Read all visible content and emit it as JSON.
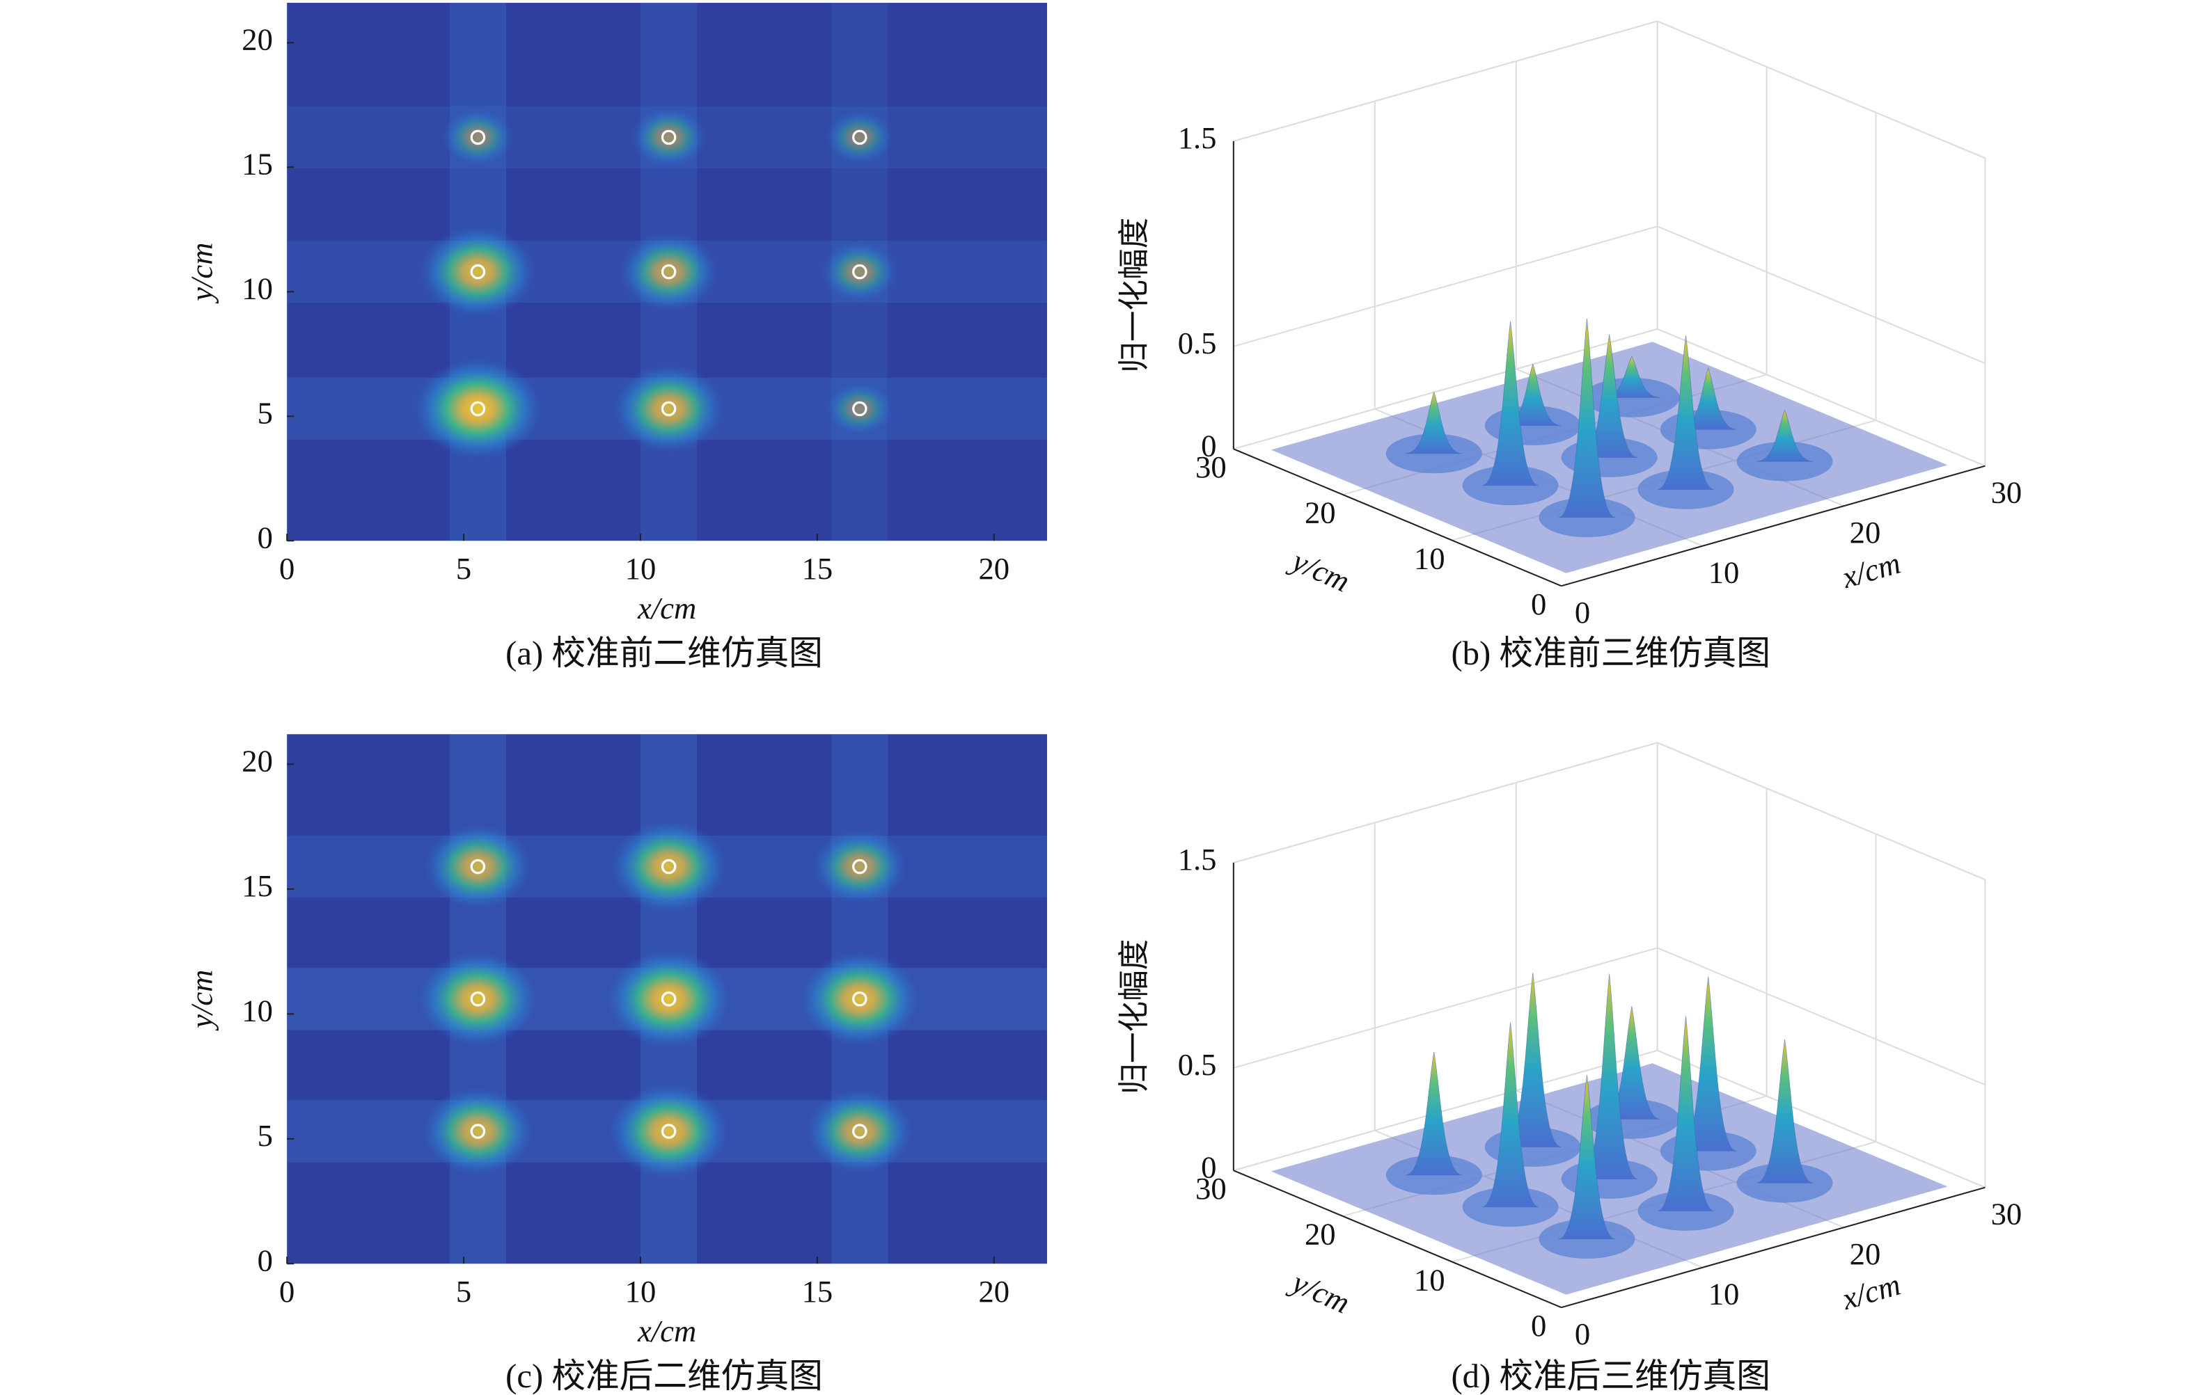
{
  "chart_data": [
    {
      "type": "heatmap",
      "caption": "(a) 校准前二维仿真图",
      "xlabel": "x/cm",
      "ylabel": "y/cm",
      "xlim": [
        0,
        21.5
      ],
      "ylim": [
        0,
        21.6
      ],
      "xticks": [
        0,
        5,
        10,
        15,
        20
      ],
      "yticks": [
        0,
        5,
        10,
        15,
        20
      ],
      "markers": {
        "x": [
          5.4,
          10.8,
          16.2,
          5.4,
          10.8,
          16.2,
          5.4,
          10.8,
          16.2
        ],
        "y": [
          5.3,
          5.3,
          5.3,
          10.8,
          10.8,
          10.8,
          16.2,
          16.2,
          16.2
        ],
        "intensity": [
          0.9,
          0.7,
          0.2,
          0.75,
          0.55,
          0.3,
          0.25,
          0.3,
          0.2
        ]
      }
    },
    {
      "type": "surface3d",
      "caption": "(b) 校准前三维仿真图",
      "xlabel": "x/cm",
      "ylabel": "y/cm",
      "zlabel": "归一化幅度",
      "xlim": [
        0,
        30
      ],
      "ylim": [
        0,
        30
      ],
      "zlim": [
        0,
        1.5
      ],
      "xticks": [
        0,
        10,
        20,
        30
      ],
      "yticks": [
        0,
        10,
        20,
        30
      ],
      "zticks": [
        0,
        0.5,
        1.5
      ],
      "peaks": {
        "x": [
          22,
          15,
          22,
          8,
          15,
          22,
          8,
          15,
          8
        ],
        "y": [
          22,
          22,
          15,
          22,
          15,
          8,
          15,
          8,
          8
        ],
        "z": [
          0.2,
          0.3,
          0.3,
          0.3,
          0.6,
          0.25,
          0.8,
          0.75,
          0.97
        ]
      }
    },
    {
      "type": "heatmap",
      "caption": "(c) 校准后二维仿真图",
      "xlabel": "x/cm",
      "ylabel": "y/cm",
      "xlim": [
        0,
        21.5
      ],
      "ylim": [
        0,
        21.2
      ],
      "xticks": [
        0,
        5,
        10,
        15,
        20
      ],
      "yticks": [
        0,
        5,
        10,
        15,
        20
      ],
      "markers": {
        "x": [
          5.4,
          10.8,
          16.2,
          5.4,
          10.8,
          16.2,
          5.4,
          10.8,
          16.2
        ],
        "y": [
          5.3,
          5.3,
          5.3,
          10.6,
          10.6,
          10.6,
          15.9,
          15.9,
          15.9
        ],
        "intensity": [
          0.7,
          0.8,
          0.65,
          0.8,
          0.85,
          0.8,
          0.65,
          0.75,
          0.5
        ]
      }
    },
    {
      "type": "surface3d",
      "caption": "(d) 校准后三维仿真图",
      "xlabel": "x/cm",
      "ylabel": "y/cm",
      "zlabel": "归一化幅度",
      "xlim": [
        0,
        30
      ],
      "ylim": [
        0,
        30
      ],
      "zlim": [
        0,
        1.5
      ],
      "xticks": [
        0,
        10,
        20,
        30
      ],
      "yticks": [
        0,
        10,
        20,
        30
      ],
      "zticks": [
        0,
        0.5,
        1.5
      ],
      "peaks": {
        "x": [
          22,
          15,
          22,
          8,
          15,
          22,
          8,
          15,
          8
        ],
        "y": [
          22,
          22,
          15,
          22,
          15,
          8,
          15,
          8,
          8
        ],
        "z": [
          0.55,
          0.85,
          0.85,
          0.6,
          1.0,
          0.7,
          0.9,
          0.95,
          0.8
        ]
      }
    }
  ]
}
